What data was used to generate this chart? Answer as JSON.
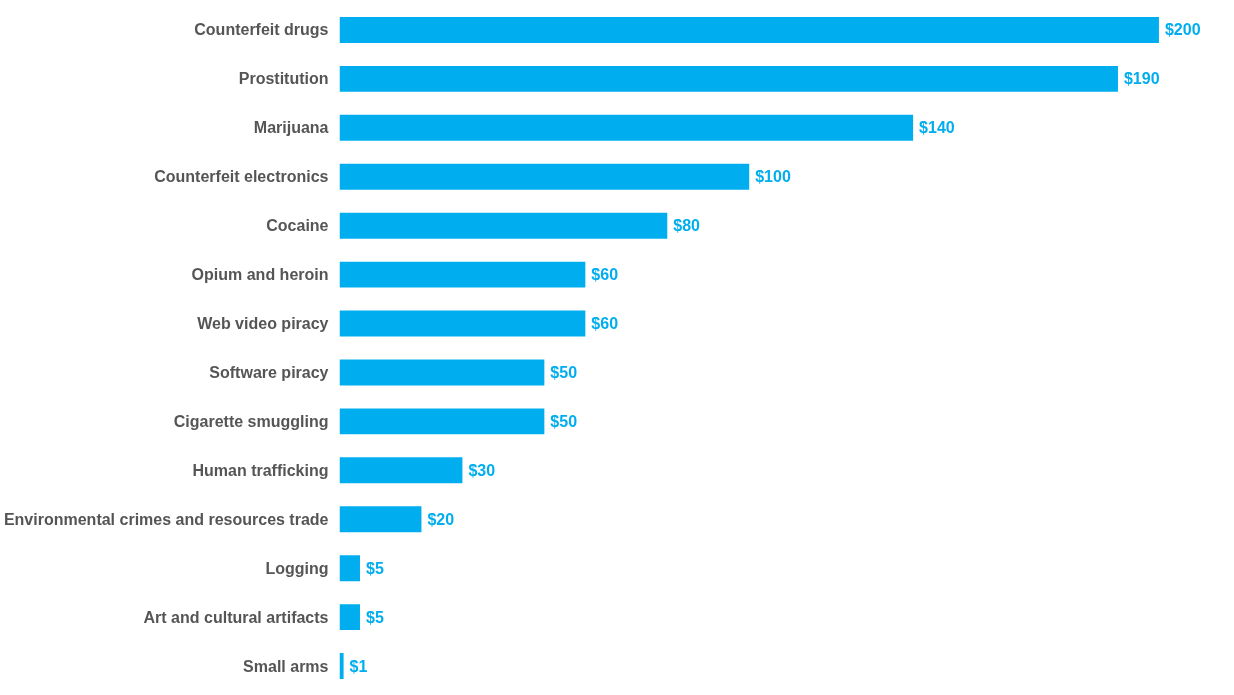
{
  "chart_data": {
    "type": "bar",
    "orientation": "horizontal",
    "color": "#00aeef",
    "categories": [
      "Counterfeit drugs",
      "Prostitution",
      "Marijuana",
      "Counterfeit electronics",
      "Cocaine",
      "Opium and heroin",
      "Web video piracy",
      "Software piracy",
      "Cigarette smuggling",
      "Human trafficking",
      "Environmental crimes and resources trade",
      "Logging",
      "Art and cultural artifacts",
      "Small arms"
    ],
    "values": [
      200,
      190,
      140,
      100,
      80,
      60,
      60,
      50,
      50,
      30,
      20,
      5,
      5,
      1
    ],
    "value_labels": [
      "$200",
      "$190",
      "$140",
      "$100",
      "$80",
      "$60",
      "$60",
      "$50",
      "$50",
      "$30",
      "$20",
      "$5",
      "$5",
      "$1"
    ]
  }
}
